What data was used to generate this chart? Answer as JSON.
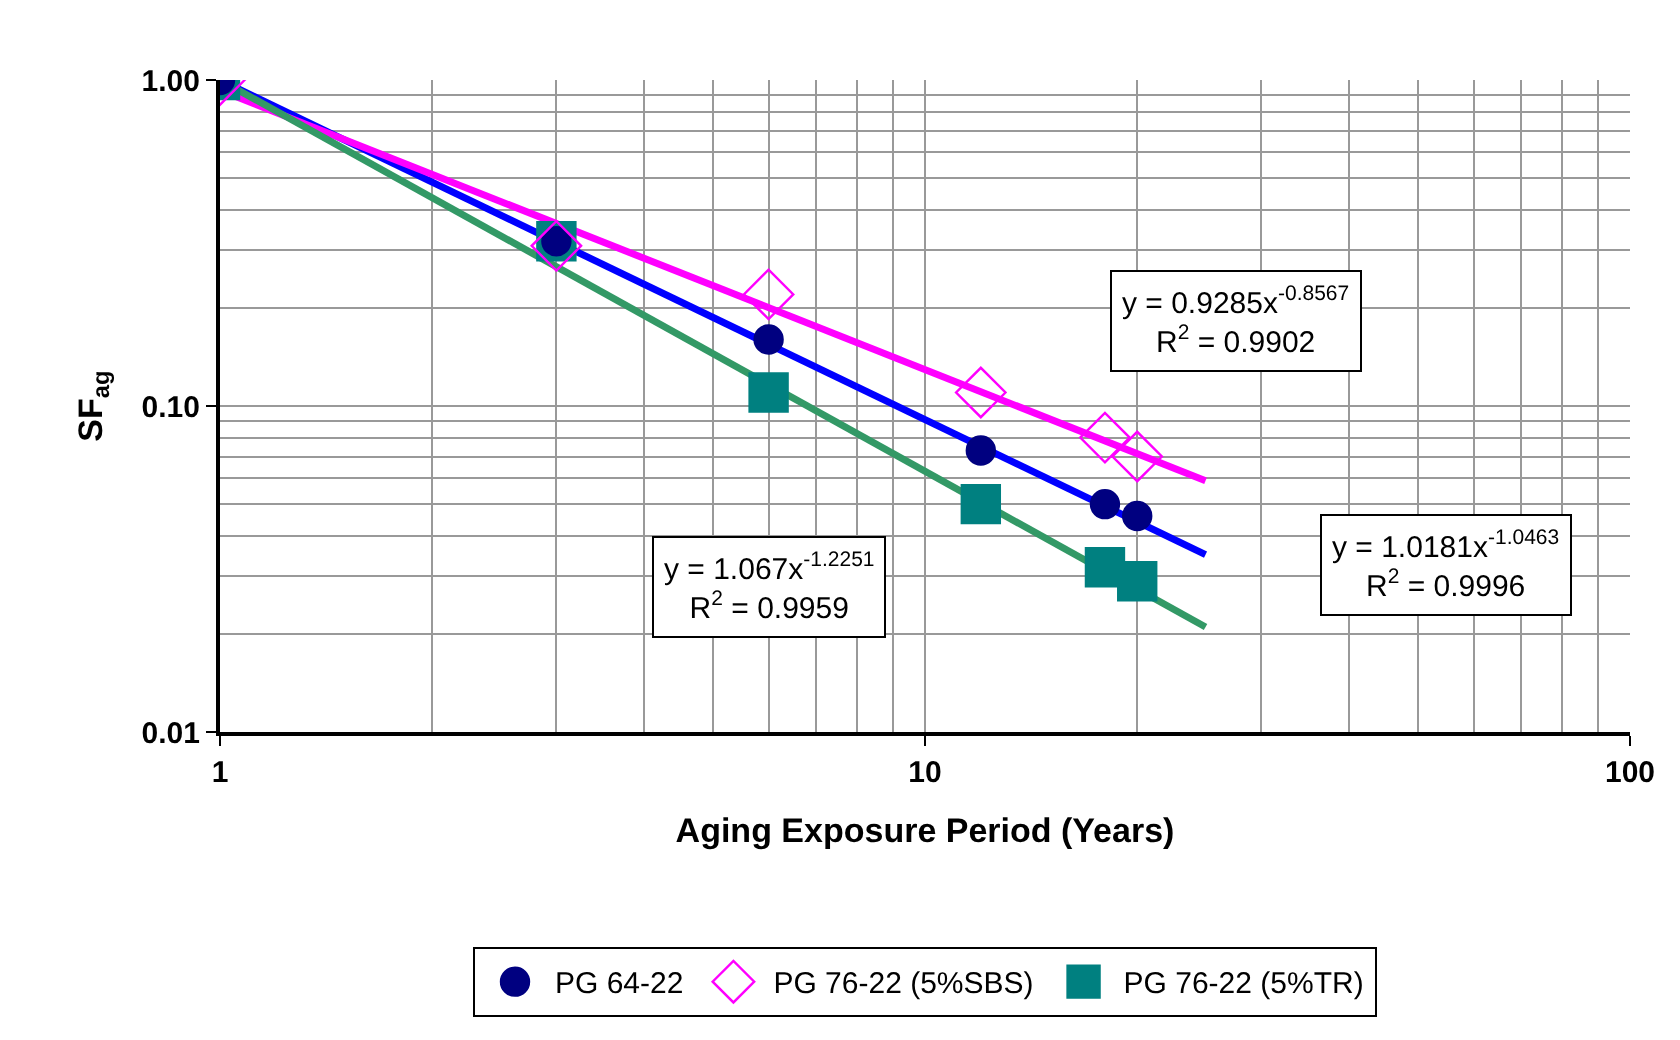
{
  "chart_data": {
    "type": "scatter",
    "xlabel": "Aging Exposure Period (Years)",
    "ylabel": "SF$_{ag}$",
    "log": "xy",
    "grid": true,
    "legend": "bottom",
    "xlim": [
      1,
      100
    ],
    "xticks": [
      1,
      10,
      100
    ],
    "ylim": [
      0.01,
      1
    ],
    "yticks": [
      {
        "value": 1,
        "label": "1.00"
      },
      {
        "value": 0.1,
        "label": "0.10"
      },
      {
        "value": 0.01,
        "label": "0.01"
      }
    ],
    "series": [
      {
        "name": "PG 64-22",
        "marker": "circle",
        "color": "#000080",
        "x": [
          1,
          3,
          6,
          12,
          18,
          20
        ],
        "values": [
          1.0,
          0.32,
          0.16,
          0.073,
          0.05,
          0.046
        ]
      },
      {
        "name": "PG 76-22 (5%SBS)",
        "marker": "diamond-open",
        "color": "#ff00ff",
        "x": [
          1,
          3,
          6,
          12,
          18,
          20
        ],
        "values": [
          1.0,
          0.31,
          0.22,
          0.11,
          0.08,
          0.07
        ]
      },
      {
        "name": "PG 76-22 (5%TR)",
        "marker": "square",
        "color": "#008080",
        "x": [
          1,
          3,
          6,
          12,
          18,
          20
        ],
        "values": [
          1.0,
          0.32,
          0.11,
          0.05,
          0.032,
          0.029
        ]
      },
      {
        "type": "line",
        "marker": "none",
        "color": "#0000ff",
        "x": [
          1,
          25
        ],
        "values": [
          1.0,
          0.035
        ]
      },
      {
        "type": "line",
        "marker": "none",
        "color": "#ff00ff",
        "x": [
          1,
          25
        ],
        "values": [
          0.93,
          0.059
        ]
      },
      {
        "type": "line",
        "marker": "none",
        "color": "#339966",
        "x": [
          1,
          25
        ],
        "values": [
          1.0,
          0.021
        ]
      }
    ],
    "annotations": [
      "y = 0.9285x$^{-0.8567}$\nR$^{2}$ = 0.9902",
      "y = 1.0181x$^{-1.0463}$\nR$^{2}$ = 0.9996",
      "y = 1.067x$^{-1.2251}$\nR$^{2}$ = 0.9959"
    ]
  }
}
